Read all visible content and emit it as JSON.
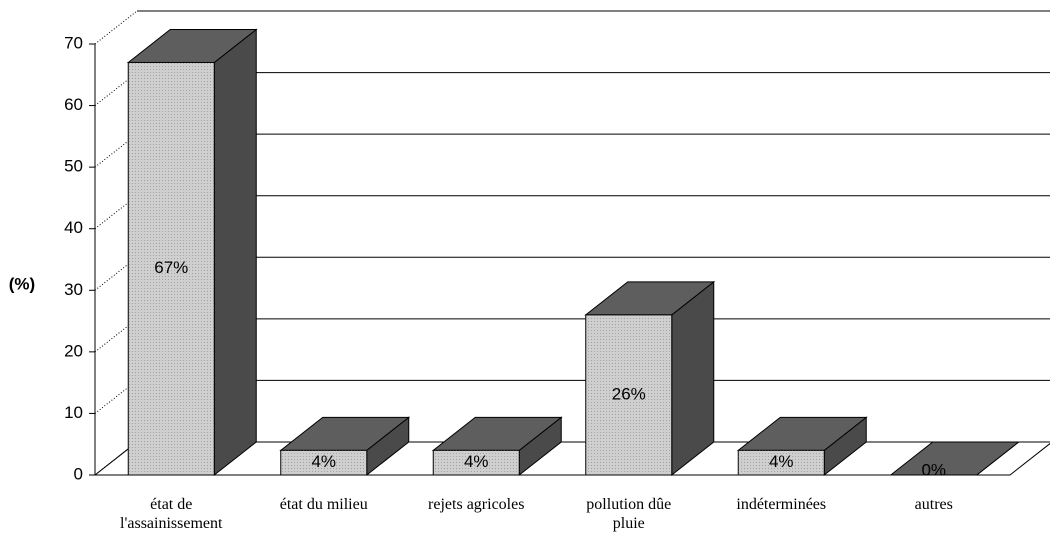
{
  "chart_data": {
    "type": "bar3d",
    "y_label": "(%)",
    "categories": [
      "état de\nl'assainissement",
      "état du milieu",
      "rejets agricoles",
      "pollution dûe\npluie",
      "indéterminées",
      "autres"
    ],
    "values": [
      67,
      4,
      4,
      26,
      4,
      0
    ],
    "value_labels": [
      "67%",
      "4%",
      "4%",
      "26%",
      "4%",
      "0%"
    ],
    "color": "#cfcfcf",
    "side_color": "#4a4a4a",
    "top_color": "#5e5e5e",
    "ylim": [
      0,
      70
    ],
    "yticks": [
      0,
      10,
      20,
      30,
      40,
      50,
      60,
      70
    ],
    "grid": true
  }
}
